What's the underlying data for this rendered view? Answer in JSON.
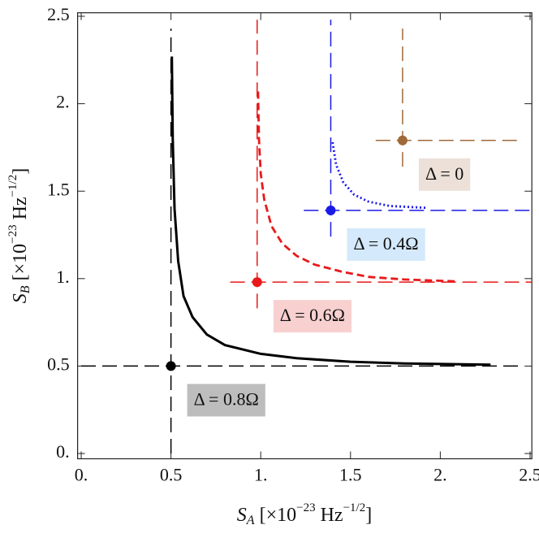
{
  "chart_data": {
    "type": "line",
    "xlim": [
      -0.02,
      2.51
    ],
    "ylim": [
      -0.03,
      2.52
    ],
    "xticks": [
      {
        "value": 0,
        "label": "0."
      },
      0.5,
      {
        "value": 1,
        "label": "1."
      },
      1.5,
      {
        "value": 2,
        "label": "2."
      },
      2.5
    ],
    "yticks": [
      {
        "value": 0,
        "label": "0."
      },
      0.5,
      {
        "value": 1,
        "label": "1."
      },
      1.5,
      {
        "value": 2,
        "label": "2."
      },
      2.5
    ],
    "x_label": {
      "symbol": "S",
      "sub": "A",
      "pre": " [×10",
      "exp1": "−23",
      "mid": " Hz",
      "exp2": "−1/2",
      "post": "]"
    },
    "y_label": {
      "symbol": "S",
      "sub": "B",
      "pre": " [×10",
      "exp1": "−23",
      "mid": " Hz",
      "exp2": "−1/2",
      "post": "]"
    },
    "series": [
      {
        "name": "Δ = 0.8Ω",
        "color": "#000000",
        "label_bg": "#bdbdbd",
        "dash": "solid",
        "point": [
          0.5,
          0.5
        ],
        "x": [
          0.505,
          0.51,
          0.52,
          0.54,
          0.57,
          0.62,
          0.7,
          0.8,
          1.0,
          1.2,
          1.5,
          1.8,
          2.28
        ],
        "values": [
          2.27,
          1.8,
          1.4,
          1.1,
          0.9,
          0.78,
          0.68,
          0.62,
          0.57,
          0.545,
          0.525,
          0.515,
          0.508
        ]
      },
      {
        "name": "Δ = 0.6Ω",
        "color": "#e8191a",
        "label_bg": "#f8d0d0",
        "dash": "dashed",
        "point": [
          0.98,
          0.98
        ],
        "x": [
          0.985,
          0.99,
          1.0,
          1.02,
          1.06,
          1.12,
          1.2,
          1.3,
          1.45,
          1.6,
          1.8,
          2.08
        ],
        "values": [
          2.07,
          1.8,
          1.6,
          1.45,
          1.3,
          1.2,
          1.13,
          1.08,
          1.04,
          1.01,
          0.995,
          0.985
        ]
      },
      {
        "name": "Δ = 0.4Ω",
        "color": "#1a1ae8",
        "label_bg": "#d4e9fb",
        "dash": "dotted",
        "point": [
          1.39,
          1.39
        ],
        "x": [
          1.4,
          1.42,
          1.46,
          1.52,
          1.6,
          1.72,
          1.92
        ],
        "values": [
          1.78,
          1.65,
          1.55,
          1.48,
          1.44,
          1.415,
          1.405
        ]
      },
      {
        "name": "Δ = 0",
        "color": "#a0693a",
        "label_bg": "#ece0d8",
        "dash": "none",
        "point": [
          1.79,
          1.79
        ],
        "x": [],
        "values": []
      }
    ]
  }
}
